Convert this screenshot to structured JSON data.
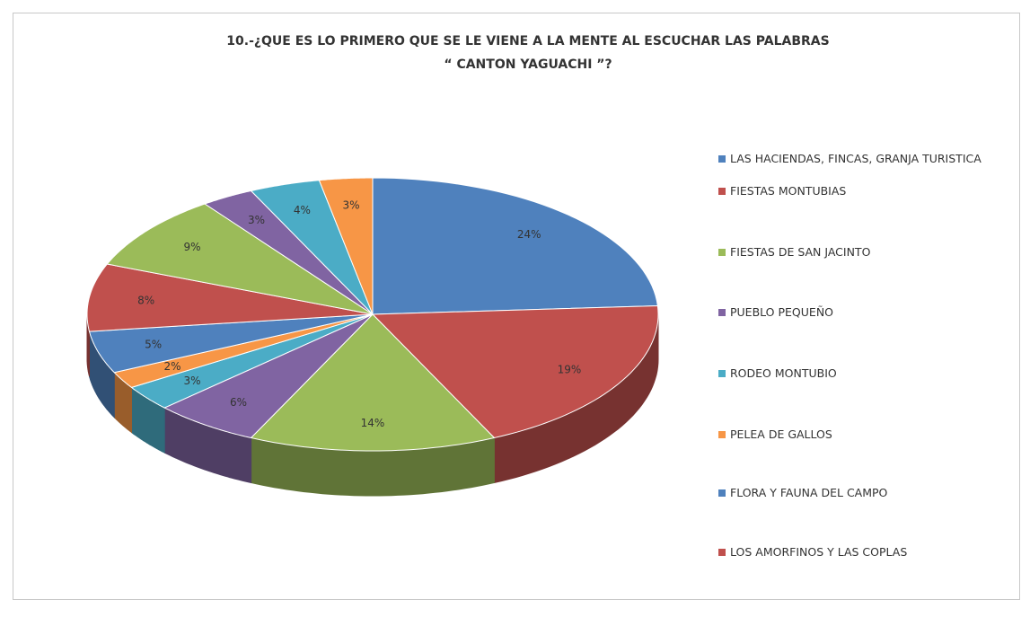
{
  "chart_data": {
    "type": "pie3d",
    "title": [
      "10.-¿QUE ES LO PRIMERO QUE SE LE VIENE A LA MENTE AL ESCUCHAR LAS PALABRAS",
      "“ CANTON YAGUACHI ”?"
    ],
    "categories": [
      "LAS HACIENDAS, FINCAS, GRANJA TURISTICA",
      "FIESTAS MONTUBIAS",
      "FIESTAS DE SAN JACINTO",
      "PUEBLO PEQUEÑO",
      "RODEO MONTUBIO",
      "PELEA DE GALLOS",
      "FLORA Y FAUNA DEL CAMPO",
      "LOS AMORFINOS Y LAS COPLAS",
      null,
      null,
      null,
      null
    ],
    "values": [
      24,
      19,
      14,
      6,
      3,
      2,
      5,
      8,
      9,
      3,
      4,
      3
    ],
    "value_labels": [
      "24%",
      "19%",
      "14%",
      "6%",
      "3%",
      "2%",
      "5%",
      "8%",
      "9%",
      "3%",
      "4%",
      "3%"
    ],
    "colors": [
      "#4f81bd",
      "#c0504d",
      "#9bbb59",
      "#8064a2",
      "#4bacc6",
      "#f79646",
      "#4f81bd",
      "#c0504d",
      "#9bbb59",
      "#8064a2",
      "#4bacc6",
      "#f79646"
    ],
    "legend": "right"
  }
}
